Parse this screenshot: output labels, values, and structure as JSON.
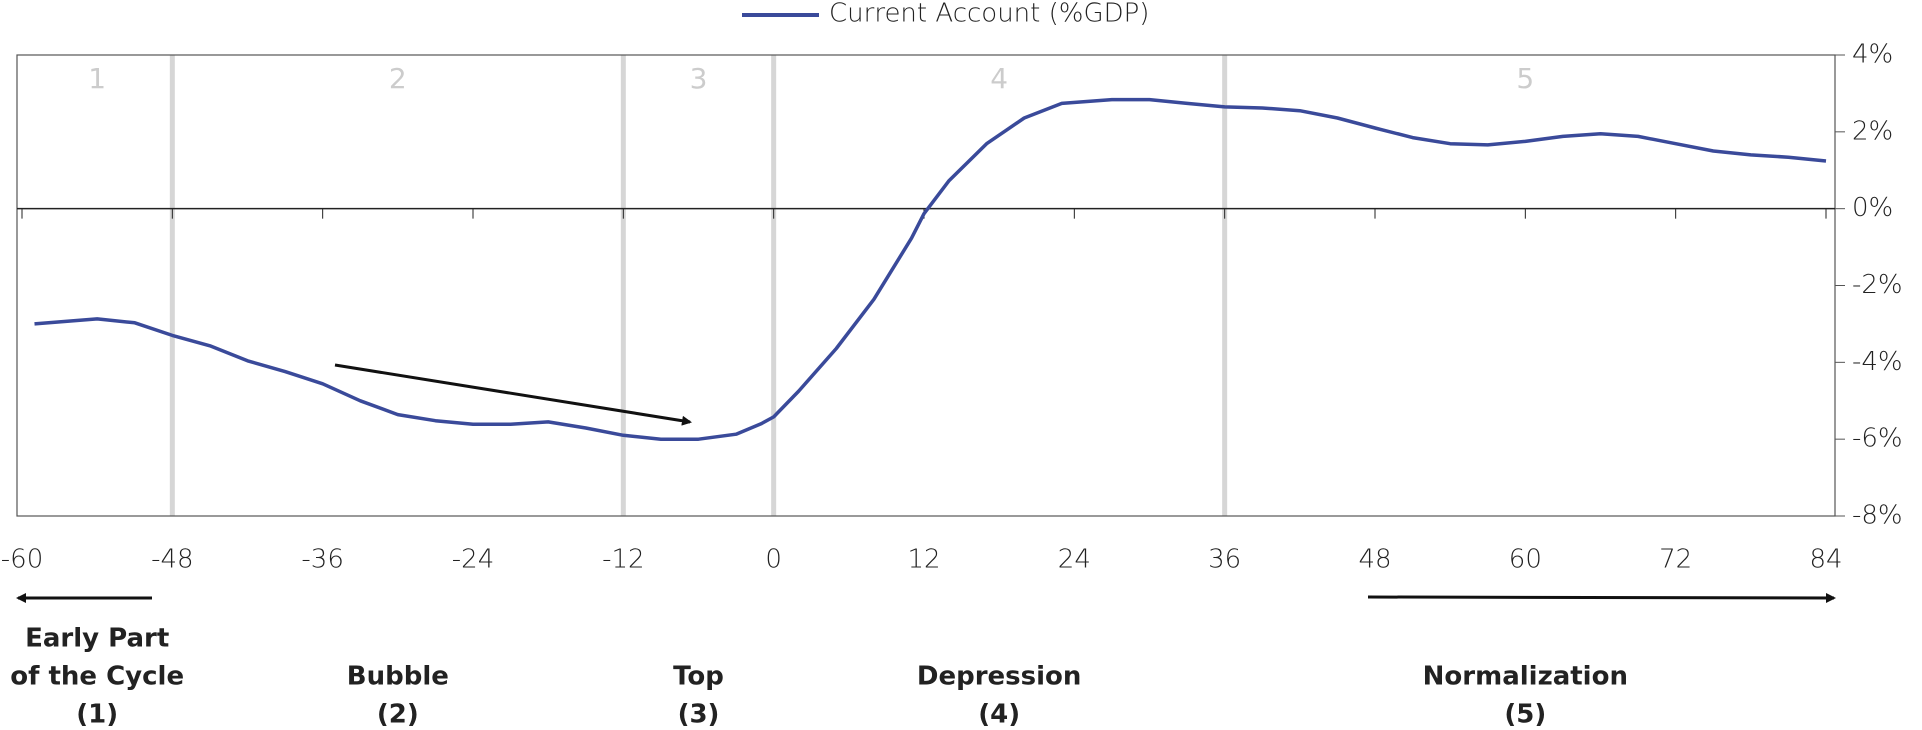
{
  "chart_data": {
    "type": "line",
    "x": [
      -59,
      -54,
      -51,
      -48,
      -45,
      -42,
      -39,
      -36,
      -33,
      -30,
      -27,
      -24,
      -21,
      -18,
      -15,
      -12,
      -9,
      -6,
      -3,
      -1,
      0,
      2,
      5,
      8,
      11,
      12,
      14,
      17,
      20,
      23,
      27,
      30,
      33,
      36,
      39,
      42,
      45,
      48,
      51,
      54,
      57,
      60,
      63,
      66,
      69,
      72,
      75,
      78,
      81,
      84
    ],
    "series": [
      {
        "name": "Current Account (%GDP)",
        "color": "#3a4a9a",
        "values": [
          -3.0,
          -2.87,
          -2.97,
          -3.3,
          -3.57,
          -3.96,
          -4.24,
          -4.56,
          -5.0,
          -5.36,
          -5.52,
          -5.61,
          -5.61,
          -5.55,
          -5.71,
          -5.9,
          -6.0,
          -6.0,
          -5.87,
          -5.6,
          -5.42,
          -4.75,
          -3.64,
          -2.36,
          -0.77,
          -0.13,
          0.73,
          1.69,
          2.36,
          2.74,
          2.84,
          2.84,
          2.74,
          2.65,
          2.62,
          2.55,
          2.36,
          2.1,
          1.85,
          1.69,
          1.66,
          1.75,
          1.88,
          1.95,
          1.88,
          1.69,
          1.5,
          1.4,
          1.34,
          1.24
        ]
      }
    ],
    "xlim": [
      -60,
      84
    ],
    "xticks": [
      -60,
      -48,
      -36,
      -24,
      -12,
      0,
      12,
      24,
      36,
      48,
      60,
      72,
      84
    ],
    "ylim": [
      -8,
      4
    ],
    "yticks": [
      {
        "value": -8,
        "label": "-8%"
      },
      {
        "value": -6,
        "label": "-6%"
      },
      {
        "value": -4,
        "label": "-4%"
      },
      {
        "value": -2,
        "label": "-2%"
      },
      {
        "value": 0,
        "label": "0%"
      },
      {
        "value": 2,
        "label": "2%"
      },
      {
        "value": 4,
        "label": "4%"
      }
    ],
    "phase_dividers": [
      -48,
      -12,
      0,
      36
    ],
    "phases": [
      {
        "x": -54,
        "number": "1",
        "name": [
          "Early Part",
          "of the Cycle",
          "(1)"
        ]
      },
      {
        "x": -30,
        "number": "2",
        "name": [
          "Bubble",
          "(2)"
        ]
      },
      {
        "x": -6,
        "number": "3",
        "name": [
          "Top",
          "(3)"
        ]
      },
      {
        "x": 18,
        "number": "4",
        "name": [
          "Depression",
          "(4)"
        ]
      },
      {
        "x": 60,
        "number": "5",
        "name": [
          "Normalization",
          "(5)"
        ]
      }
    ]
  }
}
